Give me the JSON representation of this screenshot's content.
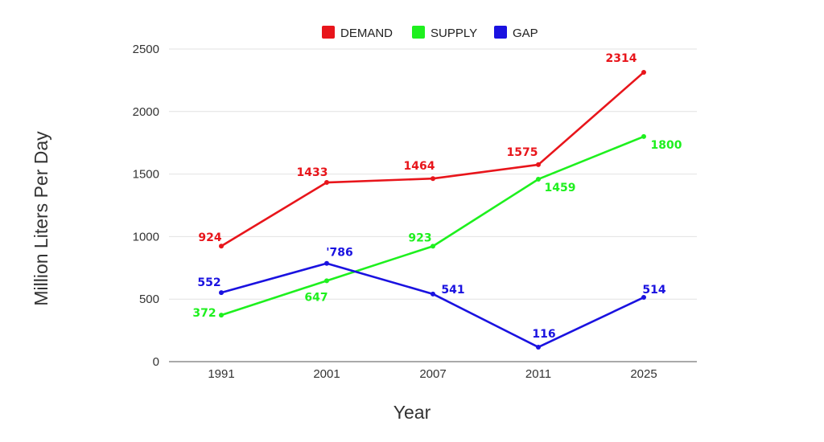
{
  "chart_data": {
    "type": "line",
    "categories": [
      "1991",
      "2001",
      "2007",
      "2011",
      "2025"
    ],
    "series": [
      {
        "name": "DEMAND",
        "color": "#e8151b",
        "values": [
          924,
          1433,
          1464,
          1575,
          2314
        ],
        "labels": [
          "924",
          "1433",
          "1464",
          "1575",
          "2314"
        ]
      },
      {
        "name": "SUPPLY",
        "color": "#1ef01e",
        "values": [
          372,
          647,
          923,
          1459,
          1800
        ],
        "labels": [
          "372",
          "647",
          "923",
          "1459",
          "1800"
        ]
      },
      {
        "name": "GAP",
        "color": "#1a12e0",
        "values": [
          552,
          786,
          541,
          116,
          514
        ],
        "labels": [
          "552",
          "'786",
          "541",
          "116",
          "514"
        ]
      }
    ],
    "title": "",
    "xlabel": "Year",
    "ylabel": "Million Liters Per Day",
    "ylim": [
      0,
      2500
    ],
    "yticks": [
      "0",
      "500",
      "1000",
      "1500",
      "2000",
      "2500"
    ],
    "grid": true,
    "legend_position": "top-center"
  }
}
